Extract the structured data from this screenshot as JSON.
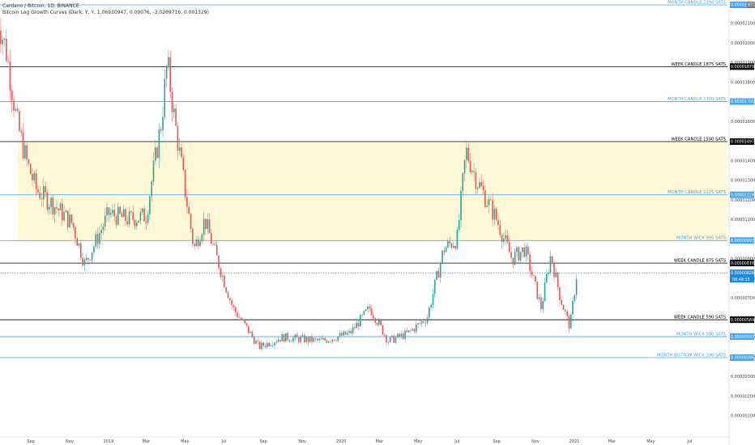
{
  "header": {
    "title": "Cardano / Bitcoin, 1D, BINANCE",
    "indicator": "Bitcoin Log Growth Curves (Dark, Y, Y, 1.06930947, 0.00076, -3.0269716, 0.001329)"
  },
  "colors": {
    "candle_up": "#26a69a",
    "candle_down": "#ef5350",
    "month_line": "#42a5f5",
    "week_line": "#000000",
    "zone_fill": "#fff8d6",
    "current_price_tag": "#1e88e5"
  },
  "y_axis": {
    "currency": "BTC",
    "ticks": [
      "0.00002100",
      "0.00002000",
      "0.00001900",
      "0.00001800",
      "0.00001600",
      "0.00001400",
      "0.00001300",
      "0.00001200",
      "0.00001100",
      "0.00000900",
      "0.00000800",
      "0.00000700",
      "0.00000600",
      "0.00000500",
      "0.00000400",
      "0.00000300",
      "0.00000200",
      "0.00000100"
    ]
  },
  "chart_data": {
    "type": "candlestick",
    "title": "Cardano / Bitcoin, 1D, BINANCE",
    "x_ticks": [
      "Sep",
      "Nov",
      "2019",
      "Mar",
      "May",
      "Jul",
      "Sep",
      "Nov",
      "2020",
      "Mar",
      "May",
      "Jul",
      "Sep",
      "Nov",
      "2021",
      "Mar",
      "May",
      "Jul"
    ],
    "price_path": [
      {
        "date": "2018-07-10",
        "value": 2.15e-05
      },
      {
        "date": "2018-07-25",
        "value": 1.95e-05
      },
      {
        "date": "2018-08-10",
        "value": 1.6e-05
      },
      {
        "date": "2018-08-25",
        "value": 1.4e-05
      },
      {
        "date": "2018-09-10",
        "value": 1.25e-05
      },
      {
        "date": "2018-10-05",
        "value": 1.18e-05
      },
      {
        "date": "2018-11-05",
        "value": 1.08e-05
      },
      {
        "date": "2018-11-25",
        "value": 8.7e-06
      },
      {
        "date": "2019-01-01",
        "value": 1.13e-05
      },
      {
        "date": "2019-02-01",
        "value": 1.1e-05
      },
      {
        "date": "2019-03-01",
        "value": 1.12e-05
      },
      {
        "date": "2019-03-25",
        "value": 1.6e-05
      },
      {
        "date": "2019-04-03",
        "value": 1.9e-05
      },
      {
        "date": "2019-04-15",
        "value": 1.6e-05
      },
      {
        "date": "2019-05-01",
        "value": 1.25e-05
      },
      {
        "date": "2019-05-15",
        "value": 9.5e-06
      },
      {
        "date": "2019-06-01",
        "value": 1.1e-05
      },
      {
        "date": "2019-06-25",
        "value": 8.5e-06
      },
      {
        "date": "2019-07-15",
        "value": 6.5e-06
      },
      {
        "date": "2019-08-05",
        "value": 5.5e-06
      },
      {
        "date": "2019-08-25",
        "value": 4.5e-06
      },
      {
        "date": "2019-10-01",
        "value": 5e-06
      },
      {
        "date": "2019-12-01",
        "value": 4.8e-06
      },
      {
        "date": "2020-01-15",
        "value": 5.2e-06
      },
      {
        "date": "2020-02-15",
        "value": 6.5e-06
      },
      {
        "date": "2020-03-15",
        "value": 4.8e-06
      },
      {
        "date": "2020-04-15",
        "value": 5.2e-06
      },
      {
        "date": "2020-05-15",
        "value": 6e-06
      },
      {
        "date": "2020-06-10",
        "value": 9.5e-06
      },
      {
        "date": "2020-07-01",
        "value": 1e-05
      },
      {
        "date": "2020-07-15",
        "value": 1.45e-05
      },
      {
        "date": "2020-08-01",
        "value": 1.3e-05
      },
      {
        "date": "2020-09-01",
        "value": 1.1e-05
      },
      {
        "date": "2020-09-25",
        "value": 9e-06
      },
      {
        "date": "2020-10-15",
        "value": 9.5e-06
      },
      {
        "date": "2020-11-10",
        "value": 6.5e-06
      },
      {
        "date": "2020-11-25",
        "value": 9.2e-06
      },
      {
        "date": "2020-12-10",
        "value": 7e-06
      },
      {
        "date": "2020-12-25",
        "value": 5.5e-06
      },
      {
        "date": "2021-01-05",
        "value": 8.3e-06
      }
    ],
    "levels": [
      {
        "label": "MONTH CANDLE 2194 SATS",
        "price": 2.194e-05,
        "tag": "0.00002194",
        "kind": "month"
      },
      {
        "label": "WEEK CANDLE 1875 SATS",
        "price": 1.879e-05,
        "tag": "0.00001879",
        "kind": "week"
      },
      {
        "label": "MONTH CANDLE 1700 SATS",
        "price": 1.701e-05,
        "tag": "0.00001701",
        "kind": "month"
      },
      {
        "label": "WEEK CANDLE 1500 SATS",
        "price": 1.497e-05,
        "tag": "0.00001497",
        "kind": "week"
      },
      {
        "label": "MONTH CANDLE 1225 SATS",
        "price": 1.226e-05,
        "tag": "0.00001226",
        "kind": "month"
      },
      {
        "label": "MONTH WICK 995 SATS",
        "price": 9.93e-06,
        "tag": "0.00000993",
        "kind": "month"
      },
      {
        "label": "WEEK CANDLE 875 SATS",
        "price": 8.78e-06,
        "tag": "0.00000878",
        "kind": "week"
      },
      {
        "label": "WEEK CANDLE 590 SATS",
        "price": 5.89e-06,
        "tag": "0.00000589",
        "kind": "week"
      },
      {
        "label": "MONTH WICK 500 SATS",
        "price": 5.03e-06,
        "tag": "0.00000503",
        "kind": "month"
      },
      {
        "label": "MONTH BOTTOM WICK 396 SATS",
        "price": 3.96e-06,
        "tag": "0.00000396",
        "kind": "month"
      }
    ],
    "current_price": {
      "price": 8.28e-06,
      "tag": "0.00000828",
      "countdown": "08:49:13"
    },
    "zone": {
      "from": 9.93e-06,
      "to": 1.497e-05
    }
  }
}
